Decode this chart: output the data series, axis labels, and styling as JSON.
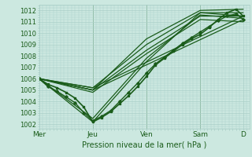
{
  "background_color": "#cce8e0",
  "grid_color": "#aacfc8",
  "line_color": "#1a5c1a",
  "ylabel_ticks": [
    1002,
    1003,
    1004,
    1005,
    1006,
    1007,
    1008,
    1009,
    1010,
    1011,
    1012
  ],
  "ylim": [
    1001.6,
    1012.5
  ],
  "xlabel": "Pression niveau de la mer( hPa )",
  "xtick_labels": [
    "Mer",
    "Jeu",
    "Ven",
    "Sam",
    "D"
  ],
  "xtick_pos": [
    0,
    60,
    120,
    180,
    228
  ],
  "xlim": [
    0,
    235
  ],
  "lines": [
    {
      "x": [
        0,
        10,
        20,
        30,
        40,
        50,
        60,
        70,
        80,
        90,
        100,
        110,
        120,
        130,
        140,
        150,
        160,
        170,
        180,
        190,
        200,
        210,
        220,
        228
      ],
      "y": [
        1006.0,
        1005.5,
        1005.2,
        1004.8,
        1004.3,
        1003.5,
        1002.2,
        1002.6,
        1003.1,
        1003.8,
        1004.5,
        1005.3,
        1006.2,
        1007.2,
        1007.8,
        1008.4,
        1009.0,
        1009.5,
        1009.9,
        1010.5,
        1011.2,
        1011.8,
        1012.1,
        1011.5
      ],
      "marker": "s",
      "ms": 2.0,
      "lw": 1.2,
      "zorder": 5
    },
    {
      "x": [
        0,
        10,
        20,
        30,
        40,
        50,
        60,
        70,
        80,
        90,
        100,
        110,
        120,
        130,
        140,
        150,
        160,
        170,
        180,
        190,
        200,
        210,
        220,
        228
      ],
      "y": [
        1006.0,
        1005.3,
        1004.9,
        1004.4,
        1003.9,
        1003.0,
        1002.3,
        1002.7,
        1003.2,
        1004.0,
        1004.8,
        1005.6,
        1006.5,
        1007.3,
        1007.9,
        1008.5,
        1009.1,
        1009.6,
        1010.1,
        1010.6,
        1011.1,
        1011.5,
        1011.7,
        1011.2
      ],
      "marker": "D",
      "ms": 1.8,
      "lw": 1.0,
      "zorder": 5
    },
    {
      "x": [
        0,
        60,
        120,
        180,
        228
      ],
      "y": [
        1006.0,
        1002.2,
        1007.5,
        1011.8,
        1011.5
      ],
      "marker": null,
      "ms": 0,
      "lw": 0.9,
      "zorder": 3
    },
    {
      "x": [
        0,
        60,
        120,
        180,
        228
      ],
      "y": [
        1006.0,
        1002.5,
        1007.8,
        1011.6,
        1011.3
      ],
      "marker": null,
      "ms": 0,
      "lw": 0.9,
      "zorder": 3
    },
    {
      "x": [
        0,
        60,
        120,
        180,
        228
      ],
      "y": [
        1006.0,
        1004.8,
        1008.2,
        1011.2,
        1011.0
      ],
      "marker": null,
      "ms": 0,
      "lw": 0.9,
      "zorder": 3
    },
    {
      "x": [
        0,
        60,
        120,
        180,
        228
      ],
      "y": [
        1006.0,
        1005.0,
        1008.5,
        1011.5,
        1011.5
      ],
      "marker": null,
      "ms": 0,
      "lw": 0.9,
      "zorder": 3
    },
    {
      "x": [
        0,
        60,
        120,
        180,
        228
      ],
      "y": [
        1006.0,
        1005.2,
        1009.0,
        1011.8,
        1011.8
      ],
      "marker": null,
      "ms": 0,
      "lw": 0.9,
      "zorder": 3
    },
    {
      "x": [
        0,
        60,
        120,
        180,
        228
      ],
      "y": [
        1006.0,
        1005.0,
        1009.5,
        1012.0,
        1012.1
      ],
      "marker": null,
      "ms": 0,
      "lw": 0.9,
      "zorder": 3
    },
    {
      "x": [
        0,
        60,
        228
      ],
      "y": [
        1006.0,
        1005.0,
        1011.2
      ],
      "marker": null,
      "ms": 0,
      "lw": 0.9,
      "zorder": 3
    },
    {
      "x": [
        0,
        60,
        228
      ],
      "y": [
        1006.0,
        1005.2,
        1011.5
      ],
      "marker": null,
      "ms": 0,
      "lw": 0.9,
      "zorder": 3
    }
  ]
}
